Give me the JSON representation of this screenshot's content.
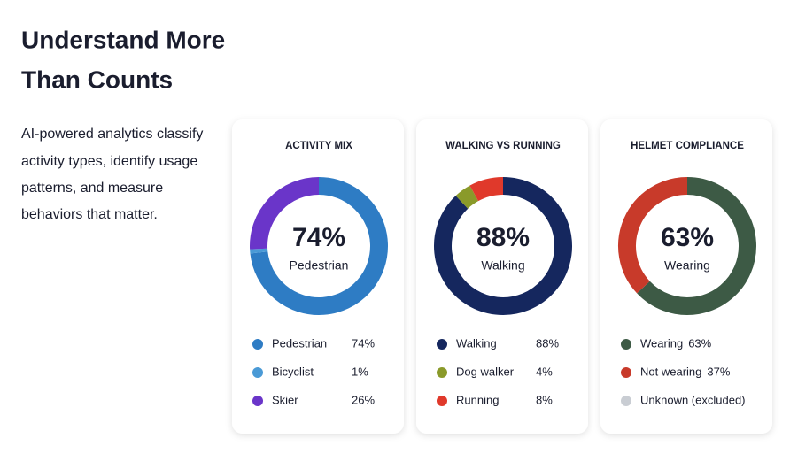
{
  "heading": [
    "Understand More",
    "Than Counts"
  ],
  "description": [
    "AI-powered analytics classify",
    "activity types, identify usage",
    "patterns, and measure",
    "behaviors that matter."
  ],
  "chart_data": [
    {
      "type": "donut",
      "title": "ACTIVITY MIX",
      "categories": [
        "Pedestrian",
        "Bicyclist",
        "Skier"
      ],
      "values": [
        74,
        1,
        26
      ],
      "value_labels": [
        "74%",
        "1%",
        "26%"
      ],
      "colors": [
        "#2e7cc4",
        "#4a9ad6",
        "#6a35c9"
      ],
      "legend_inline": false
    },
    {
      "type": "donut",
      "title": "WALKING VS RUNNING",
      "categories": [
        "Walking",
        "Dog walker",
        "Running"
      ],
      "values": [
        88,
        4,
        8
      ],
      "value_labels": [
        "88%",
        "4%",
        "8%"
      ],
      "colors": [
        "#15275e",
        "#8a9a2a",
        "#e0392b"
      ],
      "legend_inline": false
    },
    {
      "type": "donut",
      "title": "HELMET COMPLIANCE",
      "categories": [
        "Wearing",
        "Not wearing",
        "Unknown (excluded)"
      ],
      "values": [
        63,
        37,
        null
      ],
      "value_labels": [
        "63%",
        "37%",
        null
      ],
      "colors": [
        "#3d5a45",
        "#c83a2a",
        "#c9cdd3"
      ],
      "legend_inline": true
    }
  ]
}
